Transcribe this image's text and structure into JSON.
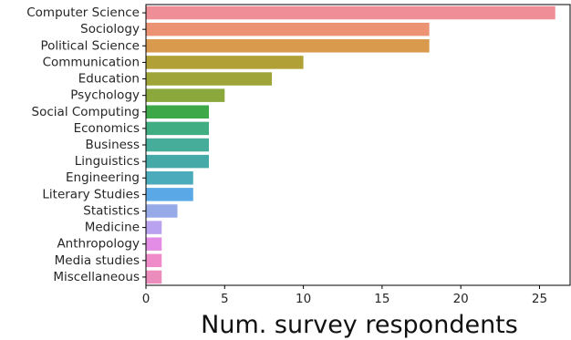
{
  "chart_data": {
    "type": "bar",
    "orientation": "horizontal",
    "categories": [
      "Computer Science",
      "Sociology",
      "Political Science",
      "Communication",
      "Education",
      "Psychology",
      "Social Computing",
      "Economics",
      "Business",
      "Linguistics",
      "Engineering",
      "Literary Studies",
      "Statistics",
      "Medicine",
      "Anthropology",
      "Media studies",
      "Miscellaneous"
    ],
    "values": [
      26,
      18,
      18,
      10,
      8,
      5,
      4,
      4,
      4,
      4,
      3,
      3,
      2,
      1,
      1,
      1,
      1
    ],
    "colors": [
      "#f08e97",
      "#ec9374",
      "#d99a4e",
      "#b1a036",
      "#a0a53a",
      "#8aa83c",
      "#3da848",
      "#40ad83",
      "#45ad9a",
      "#45a9a8",
      "#4babba",
      "#5aa9e6",
      "#97aae8",
      "#b9a2ef",
      "#e48de6",
      "#ef8bc8",
      "#ec8cbd"
    ],
    "title": "",
    "xlabel": "Num. survey respondents",
    "ylabel": "",
    "xlim": [
      0,
      27
    ],
    "xticks": [
      0,
      5,
      10,
      15,
      20,
      25
    ],
    "grid": false,
    "legend": "none"
  }
}
